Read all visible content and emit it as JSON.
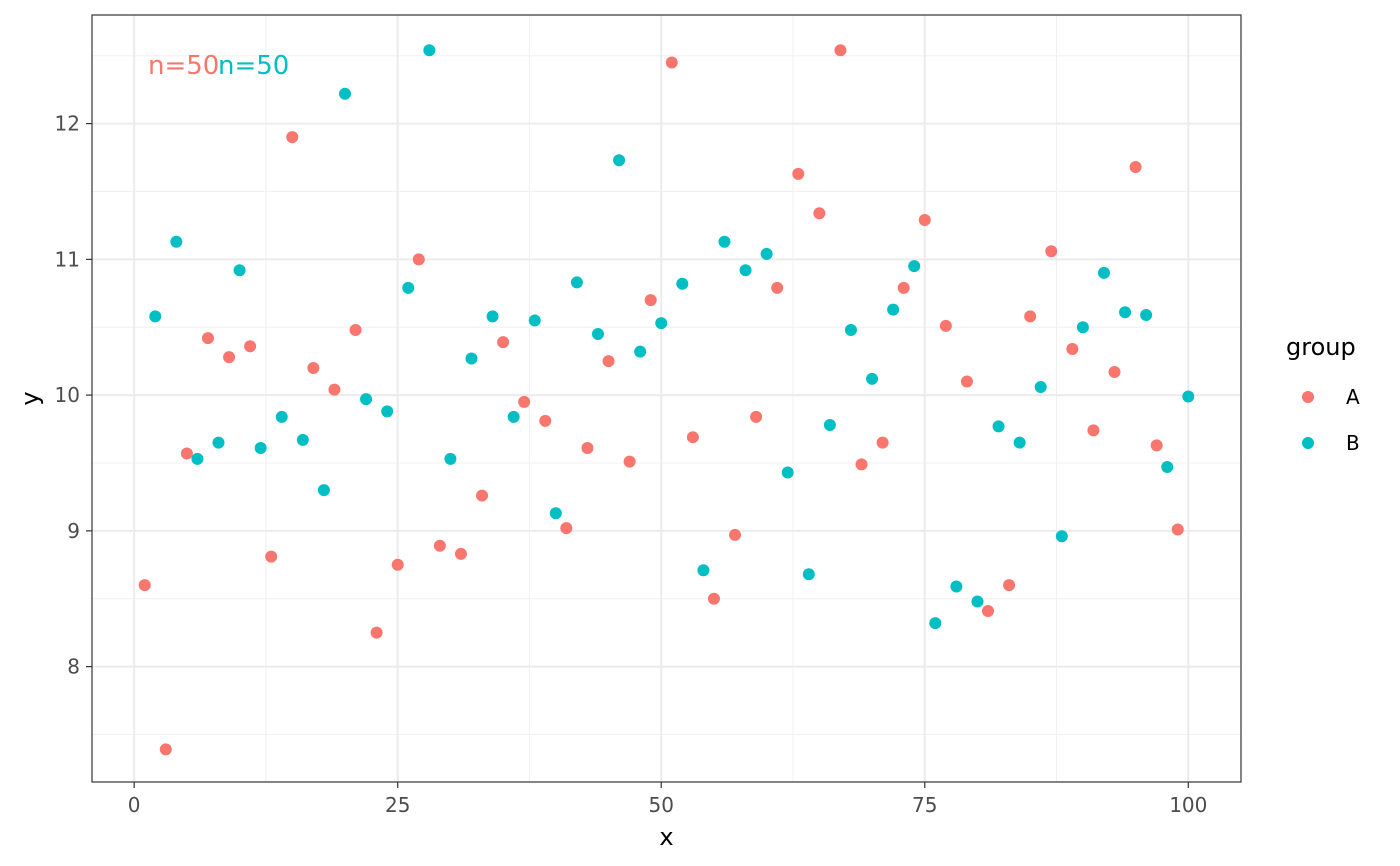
{
  "chart_data": {
    "type": "scatter",
    "xlabel": "x",
    "ylabel": "y",
    "xlim": [
      -4,
      105
    ],
    "ylim": [
      7.15,
      12.8
    ],
    "xticks": [
      "0",
      "25",
      "50",
      "75",
      "100"
    ],
    "yticks": [
      "8",
      "9",
      "10",
      "11",
      "12"
    ],
    "grid": true,
    "legend": {
      "title": "group",
      "position": "right"
    },
    "annotations": [
      {
        "text": "n=50",
        "series": "A"
      },
      {
        "text": "n=50",
        "series": "B"
      }
    ],
    "series": [
      {
        "name": "A",
        "color": "#F8766D",
        "points": [
          [
            1,
            8.6
          ],
          [
            3,
            7.39
          ],
          [
            5,
            9.57
          ],
          [
            7,
            10.42
          ],
          [
            9,
            10.28
          ],
          [
            11,
            10.36
          ],
          [
            13,
            8.81
          ],
          [
            15,
            11.9
          ],
          [
            17,
            10.2
          ],
          [
            19,
            10.04
          ],
          [
            21,
            10.48
          ],
          [
            23,
            8.25
          ],
          [
            25,
            8.75
          ],
          [
            27,
            11.0
          ],
          [
            29,
            8.89
          ],
          [
            31,
            8.83
          ],
          [
            33,
            9.26
          ],
          [
            35,
            10.39
          ],
          [
            37,
            9.95
          ],
          [
            39,
            9.81
          ],
          [
            41,
            9.02
          ],
          [
            43,
            9.61
          ],
          [
            45,
            10.25
          ],
          [
            47,
            9.51
          ],
          [
            49,
            10.7
          ],
          [
            51,
            12.45
          ],
          [
            53,
            9.69
          ],
          [
            55,
            8.5
          ],
          [
            57,
            8.97
          ],
          [
            59,
            9.84
          ],
          [
            61,
            10.79
          ],
          [
            63,
            11.63
          ],
          [
            65,
            11.34
          ],
          [
            67,
            12.54
          ],
          [
            69,
            9.49
          ],
          [
            71,
            9.65
          ],
          [
            73,
            10.79
          ],
          [
            75,
            11.29
          ],
          [
            77,
            10.51
          ],
          [
            79,
            10.1
          ],
          [
            81,
            8.41
          ],
          [
            83,
            8.6
          ],
          [
            85,
            10.58
          ],
          [
            87,
            11.06
          ],
          [
            89,
            10.34
          ],
          [
            91,
            9.74
          ],
          [
            93,
            10.17
          ],
          [
            95,
            11.68
          ],
          [
            97,
            9.63
          ],
          [
            99,
            9.01
          ]
        ]
      },
      {
        "name": "B",
        "color": "#00BFC4",
        "points": [
          [
            2,
            10.58
          ],
          [
            4,
            11.13
          ],
          [
            6,
            9.53
          ],
          [
            8,
            9.65
          ],
          [
            10,
            10.92
          ],
          [
            12,
            9.61
          ],
          [
            14,
            9.84
          ],
          [
            16,
            9.67
          ],
          [
            18,
            9.3
          ],
          [
            20,
            12.22
          ],
          [
            22,
            9.97
          ],
          [
            24,
            9.88
          ],
          [
            26,
            10.79
          ],
          [
            28,
            12.54
          ],
          [
            30,
            9.53
          ],
          [
            32,
            10.27
          ],
          [
            34,
            10.58
          ],
          [
            36,
            9.84
          ],
          [
            38,
            10.55
          ],
          [
            40,
            9.13
          ],
          [
            42,
            10.83
          ],
          [
            44,
            10.45
          ],
          [
            46,
            11.73
          ],
          [
            48,
            10.32
          ],
          [
            50,
            10.53
          ],
          [
            52,
            10.82
          ],
          [
            54,
            8.71
          ],
          [
            56,
            11.13
          ],
          [
            58,
            10.92
          ],
          [
            60,
            11.04
          ],
          [
            62,
            9.43
          ],
          [
            64,
            8.68
          ],
          [
            66,
            9.78
          ],
          [
            68,
            10.48
          ],
          [
            70,
            10.12
          ],
          [
            72,
            10.63
          ],
          [
            74,
            10.95
          ],
          [
            76,
            8.32
          ],
          [
            78,
            8.59
          ],
          [
            80,
            8.48
          ],
          [
            82,
            9.77
          ],
          [
            84,
            9.65
          ],
          [
            86,
            10.06
          ],
          [
            88,
            8.96
          ],
          [
            90,
            10.5
          ],
          [
            92,
            10.9
          ],
          [
            94,
            10.61
          ],
          [
            96,
            10.59
          ],
          [
            98,
            9.47
          ],
          [
            100,
            9.99
          ]
        ]
      }
    ]
  }
}
